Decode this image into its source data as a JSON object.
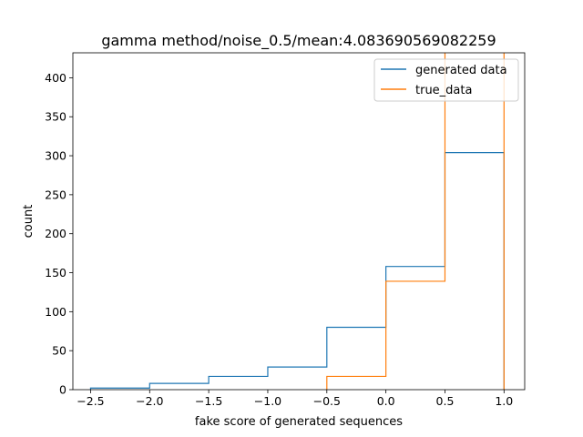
{
  "chart_data": {
    "type": "histogram",
    "title": "gamma method/noise_0.5/mean:4.083690569082259",
    "xlabel": "fake score of generated sequences",
    "ylabel": "count",
    "xlim": [
      -2.65,
      1.175
    ],
    "ylim": [
      0,
      432
    ],
    "xticks": [
      -2.5,
      -2.0,
      -1.5,
      -1.0,
      -0.5,
      0.0,
      0.5,
      1.0
    ],
    "xtick_labels": [
      "−2.5",
      "−2.0",
      "−1.5",
      "−1.0",
      "−0.5",
      "0.0",
      "0.5",
      "1.0"
    ],
    "yticks": [
      0,
      50,
      100,
      150,
      200,
      250,
      300,
      350,
      400
    ],
    "yticks_labels": [
      "0",
      "50",
      "100",
      "150",
      "200",
      "250",
      "300",
      "350",
      "400"
    ],
    "grid": false,
    "legend_position": "top-right",
    "series": [
      {
        "name": "generated data",
        "color": "#1f77b4",
        "bin_edges": [
          -2.5,
          -2.0,
          -1.5,
          -1.0,
          -0.5,
          0.0,
          0.5,
          1.0
        ],
        "counts": [
          2,
          8,
          17,
          29,
          80,
          158,
          304
        ]
      },
      {
        "name": "true_data",
        "color": "#ff7f0e",
        "bin_edges": [
          -0.5,
          0.0,
          0.5,
          1.0
        ],
        "counts": [
          17,
          139,
          440
        ]
      }
    ]
  }
}
